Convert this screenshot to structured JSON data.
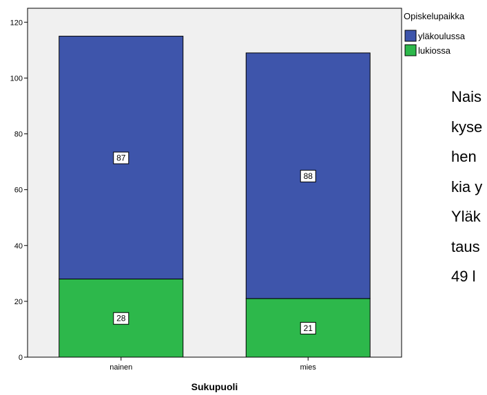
{
  "chart_data": {
    "type": "bar",
    "stacked": true,
    "categories": [
      "nainen",
      "mies"
    ],
    "series": [
      {
        "name": "lukiossa",
        "values": [
          28,
          21
        ],
        "color": "#2db84b"
      },
      {
        "name": "yläkoulussa",
        "values": [
          87,
          88
        ],
        "color": "#3e55ab"
      }
    ],
    "data_labels": true,
    "xlabel": "Sukupuoli",
    "ylabel": "",
    "ylim": [
      0,
      125
    ],
    "yticks": [
      0,
      20,
      40,
      60,
      80,
      100,
      120
    ],
    "plot_background": "#f0f0f0",
    "grid": false,
    "legend": {
      "title": "Opiskelupaikka",
      "placement": "top-right",
      "entries": [
        "yläkoulussa",
        "lukiossa"
      ]
    }
  },
  "side_text": [
    "Nais",
    "kyse",
    "hen",
    "kia y",
    "Yläk",
    "taus",
    "49 l"
  ]
}
